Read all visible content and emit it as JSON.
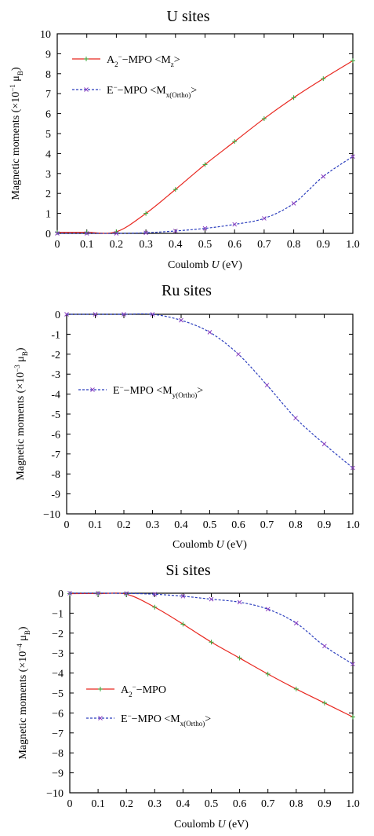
{
  "chart_data": [
    {
      "type": "line",
      "title": "U sites",
      "xlabel_prefix": "Coulomb ",
      "xlabel_var": "U",
      "xlabel_suffix": " (eV)",
      "ylabel_prefix": "Magnetic moments (×10",
      "ylabel_exp": "−1",
      "ylabel_unit": " μ",
      "ylabel_unit_sub": "B",
      "ylabel_close": ")",
      "xlim": [
        0,
        1.0
      ],
      "ylim": [
        0,
        10
      ],
      "xticks": [
        0,
        0.1,
        0.2,
        0.3,
        0.4,
        0.5,
        0.6,
        0.7,
        0.8,
        0.9,
        1.0
      ],
      "xtick_labels": [
        "0",
        "0.1",
        "0.2",
        "0.3",
        "0.4",
        "0.5",
        "0.6",
        "0.7",
        "0.8",
        "0.9",
        "1.0"
      ],
      "yticks": [
        0,
        1,
        2,
        3,
        4,
        5,
        6,
        7,
        8,
        9,
        10
      ],
      "ytick_labels": [
        "0",
        "1",
        "2",
        "3",
        "4",
        "5",
        "6",
        "7",
        "8",
        "9",
        "10"
      ],
      "legend_position": "top-left",
      "series": [
        {
          "legend_main": "A",
          "legend_sub": "2",
          "legend_sup": "−",
          "legend_rest": "−MPO <M",
          "legend_rest_sub": "z",
          "legend_close": ">",
          "color": "#e8271f",
          "dash": "solid",
          "marker": "plus",
          "x": [
            0,
            0.1,
            0.2,
            0.3,
            0.4,
            0.5,
            0.6,
            0.7,
            0.8,
            0.9,
            1.0
          ],
          "y": [
            0.05,
            0.05,
            0.08,
            1.0,
            2.2,
            3.45,
            4.6,
            5.75,
            6.8,
            7.75,
            8.65
          ]
        },
        {
          "legend_main": "E",
          "legend_sub": "",
          "legend_sup": "−",
          "legend_rest": "−MPO <M",
          "legend_rest_sub": "x(Ortho)",
          "legend_close": ">",
          "color": "#2a3dbd",
          "dash": "dashed",
          "marker": "x",
          "x": [
            0,
            0.1,
            0.2,
            0.3,
            0.4,
            0.5,
            0.6,
            0.7,
            0.8,
            0.9,
            1.0
          ],
          "y": [
            0.0,
            0.0,
            0.0,
            0.03,
            0.12,
            0.25,
            0.45,
            0.75,
            1.5,
            2.85,
            3.85
          ]
        }
      ]
    },
    {
      "type": "line",
      "title": "Ru sites",
      "xlabel_prefix": "Coulomb ",
      "xlabel_var": "U",
      "xlabel_suffix": " (eV)",
      "ylabel_prefix": "Magnetic moments (×10",
      "ylabel_exp": "−3",
      "ylabel_unit": " μ",
      "ylabel_unit_sub": "B",
      "ylabel_close": ")",
      "xlim": [
        0,
        1.0
      ],
      "ylim": [
        -10,
        0
      ],
      "xticks": [
        0,
        0.1,
        0.2,
        0.3,
        0.4,
        0.5,
        0.6,
        0.7,
        0.8,
        0.9,
        1.0
      ],
      "xtick_labels": [
        "0",
        "0.1",
        "0.2",
        "0.3",
        "0.4",
        "0.5",
        "0.6",
        "0.7",
        "0.8",
        "0.9",
        "1.0"
      ],
      "yticks": [
        0,
        -1,
        -2,
        -3,
        -4,
        -5,
        -6,
        -7,
        -8,
        -9,
        -10
      ],
      "ytick_labels": [
        "0",
        "-1",
        "-2",
        "-3",
        "-4",
        "-5",
        "-6",
        "-7",
        "-8",
        "-9",
        "−10"
      ],
      "legend_position": "left-middle",
      "series": [
        {
          "legend_main": "E",
          "legend_sub": "",
          "legend_sup": "−",
          "legend_rest": "−MPO  <M",
          "legend_rest_sub": "y(Ortho)",
          "legend_close": ">",
          "color": "#2a3dbd",
          "dash": "dashed",
          "marker": "x",
          "x": [
            0,
            0.1,
            0.2,
            0.3,
            0.4,
            0.5,
            0.6,
            0.7,
            0.8,
            0.9,
            1.0
          ],
          "y": [
            0.0,
            0.0,
            0.0,
            0.0,
            -0.3,
            -0.9,
            -2.0,
            -3.55,
            -5.2,
            -6.5,
            -7.7
          ]
        }
      ]
    },
    {
      "type": "line",
      "title": "Si sites",
      "xlabel_prefix": "Coulomb ",
      "xlabel_var": "U",
      "xlabel_suffix": " (eV)",
      "ylabel_prefix": "Magnetic moments (×10",
      "ylabel_exp": "−4",
      "ylabel_unit": " μ",
      "ylabel_unit_sub": "B",
      "ylabel_close": ")",
      "xlim": [
        0,
        1.0
      ],
      "ylim": [
        -10,
        0
      ],
      "xticks": [
        0,
        0.1,
        0.2,
        0.3,
        0.4,
        0.5,
        0.6,
        0.7,
        0.8,
        0.9,
        1.0
      ],
      "xtick_labels": [
        "0",
        "0.1",
        "0.2",
        "0.3",
        "0.4",
        "0.5",
        "0.6",
        "0.7",
        "0.8",
        "0.9",
        "1.0"
      ],
      "yticks": [
        0,
        -1,
        -2,
        -3,
        -4,
        -5,
        -6,
        -7,
        -8,
        -9,
        -10
      ],
      "ytick_labels": [
        "0",
        "−1",
        "−2",
        "−3",
        "−4",
        "−5",
        "−6",
        "−7",
        "−8",
        "−9",
        "−10"
      ],
      "legend_position": "left-middle",
      "series": [
        {
          "legend_main": "A",
          "legend_sub": "2",
          "legend_sup": "−",
          "legend_rest": "−MPO",
          "legend_rest_sub": "",
          "legend_close": "",
          "color": "#e8271f",
          "dash": "solid",
          "marker": "plus",
          "x": [
            0,
            0.1,
            0.2,
            0.3,
            0.4,
            0.5,
            0.6,
            0.7,
            0.8,
            0.9,
            1.0
          ],
          "y": [
            -0.02,
            -0.02,
            -0.05,
            -0.7,
            -1.55,
            -2.45,
            -3.25,
            -4.05,
            -4.8,
            -5.5,
            -6.2
          ]
        },
        {
          "legend_main": "E",
          "legend_sub": "",
          "legend_sup": "−",
          "legend_rest": "−MPO <M",
          "legend_rest_sub": "x(Ortho)",
          "legend_close": ">",
          "color": "#2a3dbd",
          "dash": "dashed",
          "marker": "x",
          "x": [
            0,
            0.1,
            0.2,
            0.3,
            0.4,
            0.5,
            0.6,
            0.7,
            0.8,
            0.9,
            1.0
          ],
          "y": [
            0.0,
            0.0,
            -0.01,
            -0.05,
            -0.15,
            -0.3,
            -0.45,
            -0.8,
            -1.5,
            -2.65,
            -3.55
          ]
        }
      ]
    }
  ]
}
